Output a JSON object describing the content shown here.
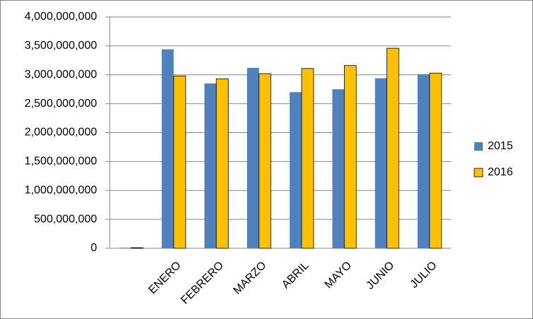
{
  "chart_data": {
    "type": "bar",
    "categories": [
      null,
      "ENERO",
      "FEBRERO",
      "MARZO",
      "ABRIL",
      "MAYO",
      "JUNIO",
      "JULIO"
    ],
    "series": [
      {
        "name": "2015",
        "color": "#4f81bd",
        "values": [
          10000000,
          3440000000,
          2850000000,
          3120000000,
          2700000000,
          2750000000,
          2940000000,
          3010000000
        ]
      },
      {
        "name": "2016",
        "color": "#ffc000",
        "values": [
          10000000,
          2980000000,
          2930000000,
          3020000000,
          3110000000,
          3160000000,
          3460000000,
          3030000000
        ]
      }
    ],
    "ylim": [
      0,
      4000000000
    ],
    "yticks": [
      0,
      {
        "value": 500000000,
        "label": "500,000,000"
      },
      {
        "value": 1000000000,
        "label": "1,000,000,000"
      },
      {
        "value": 1500000000,
        "label": "1,500,000,000"
      },
      {
        "value": 2000000000,
        "label": "2,000,000,000"
      },
      {
        "value": 2500000000,
        "label": "2,500,000,000"
      },
      {
        "value": 3000000000,
        "label": "3,000,000,000"
      },
      {
        "value": 3500000000,
        "label": "3,500,000,000"
      },
      {
        "value": 4000000000,
        "label": "4,000,000,000"
      }
    ],
    "grid": true,
    "legend": "right"
  }
}
